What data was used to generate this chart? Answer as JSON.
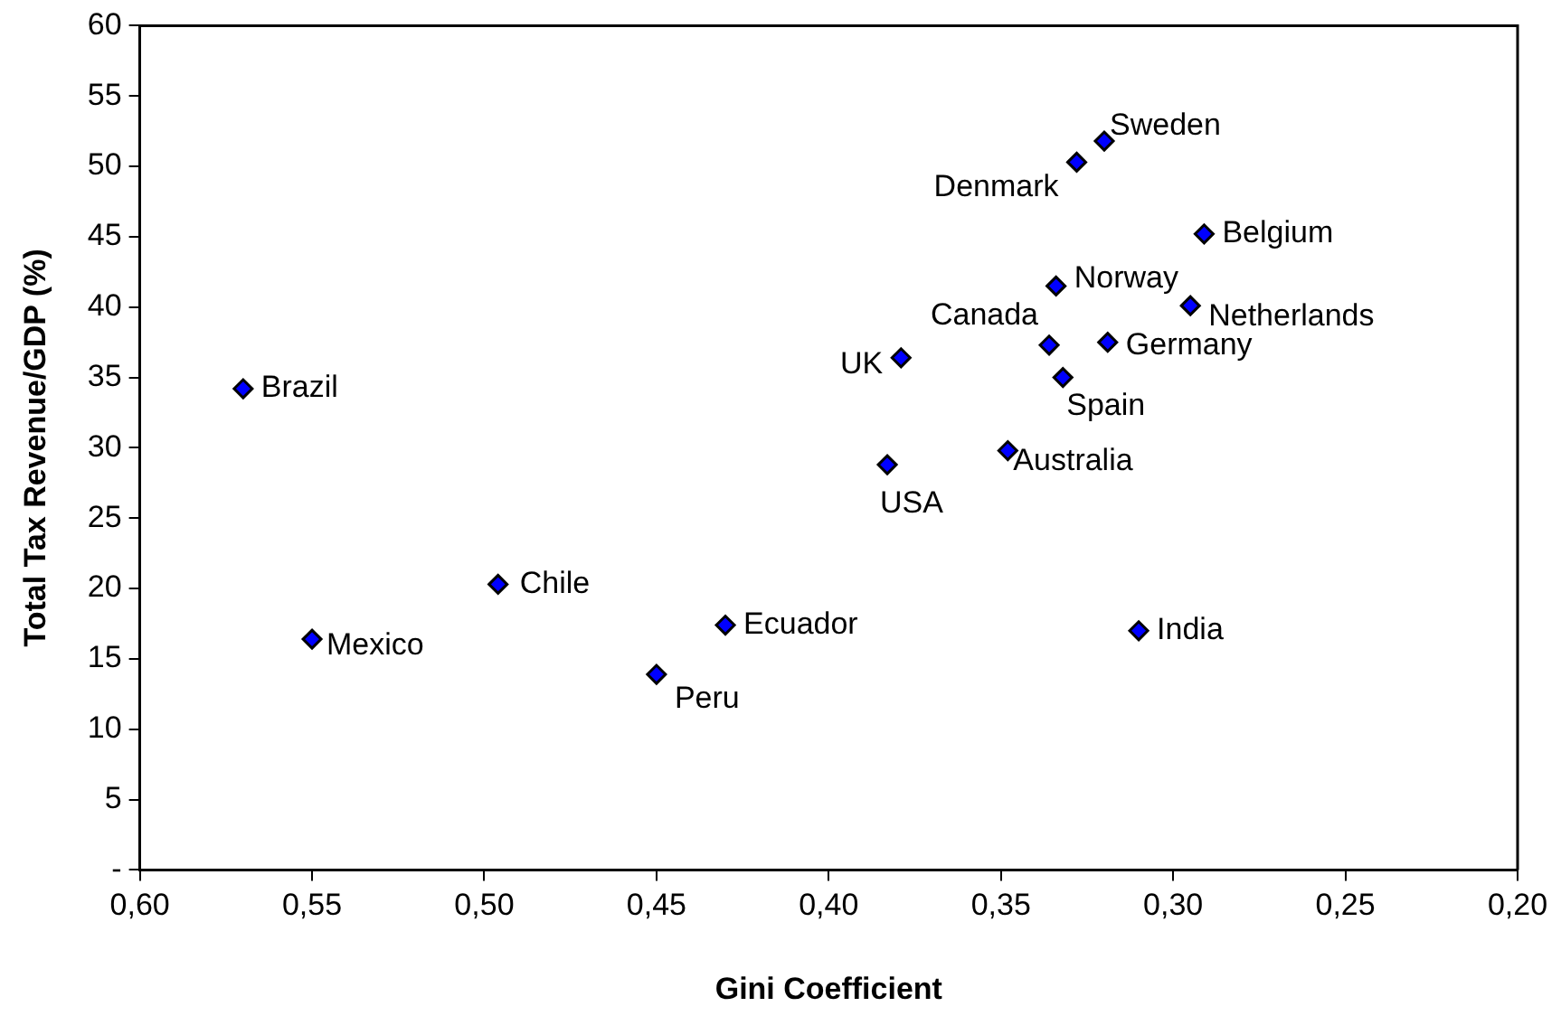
{
  "chart_data": {
    "type": "scatter",
    "xlabel": "Gini Coefficient",
    "ylabel": "Total Tax Revenue/GDP (%)",
    "x": [
      0.57,
      0.55,
      0.496,
      0.45,
      0.43,
      0.32,
      0.328,
      0.291,
      0.334,
      0.295,
      0.336,
      0.319,
      0.379,
      0.332,
      0.348,
      0.383,
      0.31
    ],
    "series": [
      {
        "color": "#0000ff",
        "values": [
          34.2,
          16.4,
          20.3,
          13.9,
          17.4,
          51.8,
          50.3,
          45.2,
          41.5,
          40.1,
          37.3,
          37.5,
          36.4,
          35.0,
          29.8,
          28.8,
          17.0
        ]
      }
    ],
    "marker": "diamond",
    "grid": false,
    "legend": false,
    "xlim": [
      0.6,
      0.2
    ],
    "xticks": [
      {
        "value": 0.6,
        "label": "0,60"
      },
      {
        "value": 0.55,
        "label": "0,55"
      },
      {
        "value": 0.5,
        "label": "0,50"
      },
      {
        "value": 0.45,
        "label": "0,45"
      },
      {
        "value": 0.4,
        "label": "0,40"
      },
      {
        "value": 0.35,
        "label": "0,35"
      },
      {
        "value": 0.3,
        "label": "0,30"
      },
      {
        "value": 0.25,
        "label": "0,25"
      },
      {
        "value": 0.2,
        "label": "0,20"
      }
    ],
    "ylim": [
      0,
      60
    ],
    "yticks": [
      {
        "value": 0,
        "label": "-"
      },
      5,
      10,
      15,
      20,
      25,
      30,
      35,
      40,
      45,
      50,
      55,
      60
    ],
    "annotations": [
      {
        "text": "Brazil",
        "x": 0.57,
        "y": 34.2
      },
      {
        "text": "Mexico",
        "x": 0.55,
        "y": 16.4
      },
      {
        "text": "Chile",
        "x": 0.496,
        "y": 20.3
      },
      {
        "text": "Peru",
        "x": 0.45,
        "y": 13.9
      },
      {
        "text": "Ecuador",
        "x": 0.43,
        "y": 17.4
      },
      {
        "text": "Sweden",
        "x": 0.32,
        "y": 51.8
      },
      {
        "text": "Denmark",
        "x": 0.328,
        "y": 50.3
      },
      {
        "text": "Belgium",
        "x": 0.291,
        "y": 45.2
      },
      {
        "text": "Norway",
        "x": 0.334,
        "y": 41.5
      },
      {
        "text": "Netherlands",
        "x": 0.295,
        "y": 40.1
      },
      {
        "text": "Canada",
        "x": 0.336,
        "y": 37.3
      },
      {
        "text": "Germany",
        "x": 0.319,
        "y": 37.5
      },
      {
        "text": "UK",
        "x": 0.379,
        "y": 36.4
      },
      {
        "text": "Spain",
        "x": 0.332,
        "y": 35.0
      },
      {
        "text": "Australia",
        "x": 0.348,
        "y": 29.8
      },
      {
        "text": "USA",
        "x": 0.383,
        "y": 28.8
      },
      {
        "text": "India",
        "x": 0.31,
        "y": 17.0
      }
    ]
  }
}
